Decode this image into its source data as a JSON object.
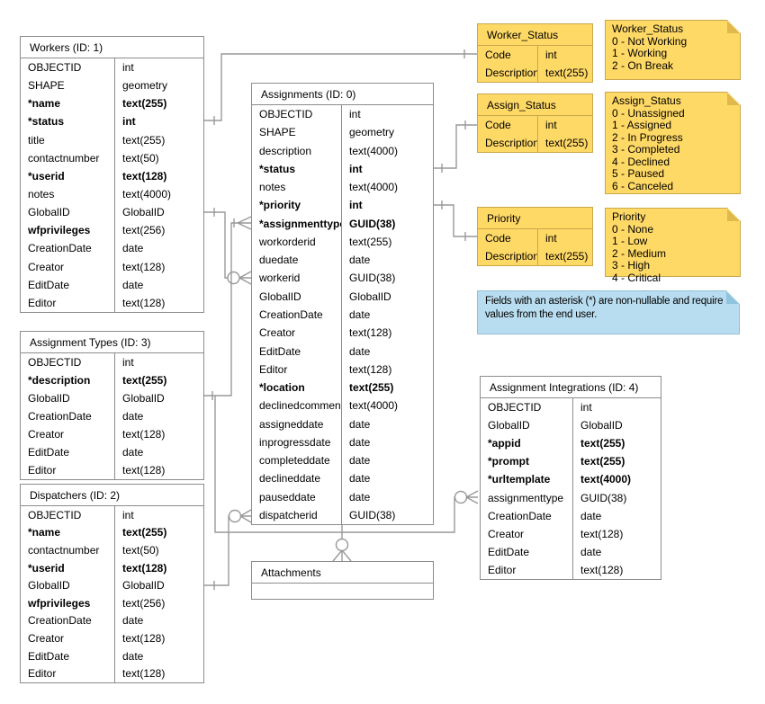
{
  "tables": {
    "workers": {
      "title": "Workers (ID: 1)",
      "rows": [
        [
          "OBJECTID",
          "int",
          0
        ],
        [
          "SHAPE",
          "geometry",
          0
        ],
        [
          "*name",
          "text(255)",
          1
        ],
        [
          "*status",
          "int",
          1
        ],
        [
          "title",
          "text(255)",
          0
        ],
        [
          "contactnumber",
          "text(50)",
          0
        ],
        [
          "*userid",
          "text(128)",
          1
        ],
        [
          "notes",
          "text(4000)",
          0
        ],
        [
          "GlobalID",
          "GlobalID",
          0
        ],
        [
          "wfprivileges",
          "text(256)",
          2
        ],
        [
          "CreationDate",
          "date",
          0
        ],
        [
          "Creator",
          "text(128)",
          0
        ],
        [
          "EditDate",
          "date",
          0
        ],
        [
          "Editor",
          "text(128)",
          0
        ]
      ]
    },
    "assignment_types": {
      "title": "Assignment Types (ID: 3)",
      "rows": [
        [
          "OBJECTID",
          "int",
          0
        ],
        [
          "*description",
          "text(255)",
          1
        ],
        [
          "GlobalID",
          "GlobalID",
          0
        ],
        [
          "CreationDate",
          "date",
          0
        ],
        [
          "Creator",
          "text(128)",
          0
        ],
        [
          "EditDate",
          "date",
          0
        ],
        [
          "Editor",
          "text(128)",
          0
        ]
      ]
    },
    "dispatchers": {
      "title": "Dispatchers (ID: 2)",
      "rows": [
        [
          "OBJECTID",
          "int",
          0
        ],
        [
          "*name",
          "text(255)",
          1
        ],
        [
          "contactnumber",
          "text(50)",
          0
        ],
        [
          "*userid",
          "text(128)",
          1
        ],
        [
          "GlobalID",
          "GlobalID",
          0
        ],
        [
          "wfprivileges",
          "text(256)",
          2
        ],
        [
          "CreationDate",
          "date",
          0
        ],
        [
          "Creator",
          "text(128)",
          0
        ],
        [
          "EditDate",
          "date",
          0
        ],
        [
          "Editor",
          "text(128)",
          0
        ]
      ]
    },
    "assignments": {
      "title": "Assignments (ID: 0)",
      "rows": [
        [
          "OBJECTID",
          "int",
          0
        ],
        [
          "SHAPE",
          "geometry",
          0
        ],
        [
          "description",
          "text(4000)",
          0
        ],
        [
          "*status",
          "int",
          1
        ],
        [
          "notes",
          "text(4000)",
          0
        ],
        [
          "*priority",
          "int",
          1
        ],
        [
          "*assignmenttype",
          "GUID(38)",
          1
        ],
        [
          "workorderid",
          "text(255)",
          0
        ],
        [
          "duedate",
          "date",
          0
        ],
        [
          "workerid",
          "GUID(38)",
          0
        ],
        [
          "GlobalID",
          "GlobalID",
          0
        ],
        [
          "CreationDate",
          "date",
          0
        ],
        [
          "Creator",
          "text(128)",
          0
        ],
        [
          "EditDate",
          "date",
          0
        ],
        [
          "Editor",
          "text(128)",
          0
        ],
        [
          "*location",
          "text(255)",
          1
        ],
        [
          "declinedcomment",
          "text(4000)",
          0
        ],
        [
          "assigneddate",
          "date",
          0
        ],
        [
          "inprogressdate",
          "date",
          0
        ],
        [
          "completeddate",
          "date",
          0
        ],
        [
          "declineddate",
          "date",
          0
        ],
        [
          "pauseddate",
          "date",
          0
        ],
        [
          "dispatcherid",
          "GUID(38)",
          0
        ]
      ]
    },
    "attachments": {
      "title": "Attachments",
      "rows": []
    },
    "assignment_integrations": {
      "title": "Assignment Integrations (ID: 4)",
      "rows": [
        [
          "OBJECTID",
          "int",
          0
        ],
        [
          "GlobalID",
          "GlobalID",
          0
        ],
        [
          "*appid",
          "text(255)",
          1
        ],
        [
          "*prompt",
          "text(255)",
          1
        ],
        [
          "*urltemplate",
          "text(4000)",
          1
        ],
        [
          "assignmenttype",
          "GUID(38)",
          0
        ],
        [
          "CreationDate",
          "date",
          0
        ],
        [
          "Creator",
          "text(128)",
          0
        ],
        [
          "EditDate",
          "date",
          0
        ],
        [
          "Editor",
          "text(128)",
          0
        ]
      ]
    }
  },
  "domains": {
    "worker_status": {
      "title": "Worker_Status",
      "rows": [
        [
          "Code",
          "int",
          0
        ],
        [
          "Description",
          "text(255)",
          0
        ]
      ]
    },
    "assign_status": {
      "title": "Assign_Status",
      "rows": [
        [
          "Code",
          "int",
          0
        ],
        [
          "Description",
          "text(255)",
          0
        ]
      ]
    },
    "priority": {
      "title": "Priority",
      "rows": [
        [
          "Code",
          "int",
          0
        ],
        [
          "Description",
          "text(255)",
          0
        ]
      ]
    }
  },
  "notes": {
    "worker_status": {
      "lines": [
        "Worker_Status",
        "0 - Not Working",
        "1 - Working",
        "2 - On Break"
      ]
    },
    "assign_status": {
      "lines": [
        "Assign_Status",
        "0 - Unassigned",
        "1 - Assigned",
        "2 - In Progress",
        "3 - Completed",
        "4 - Declined",
        "5 - Paused",
        "6 - Canceled"
      ]
    },
    "priority": {
      "lines": [
        "Priority",
        "0 - None",
        "1 - Low",
        "2 - Medium",
        "3 - High",
        "4 - Critical"
      ]
    },
    "asterisk": {
      "text": "Fields with an asterisk (*) are non-nullable and require values from the end user."
    }
  },
  "colors": {
    "sticky_fill": "#FFD966",
    "sticky_border": "#C9A74C",
    "sticky_fold": "#E0B94E",
    "note_blue_fill": "#B9DDF0",
    "note_blue_border": "#93BFD4",
    "note_blue_fold": "#8FC4DE",
    "table_border": "#8C8C8C",
    "connector": "#999999"
  }
}
